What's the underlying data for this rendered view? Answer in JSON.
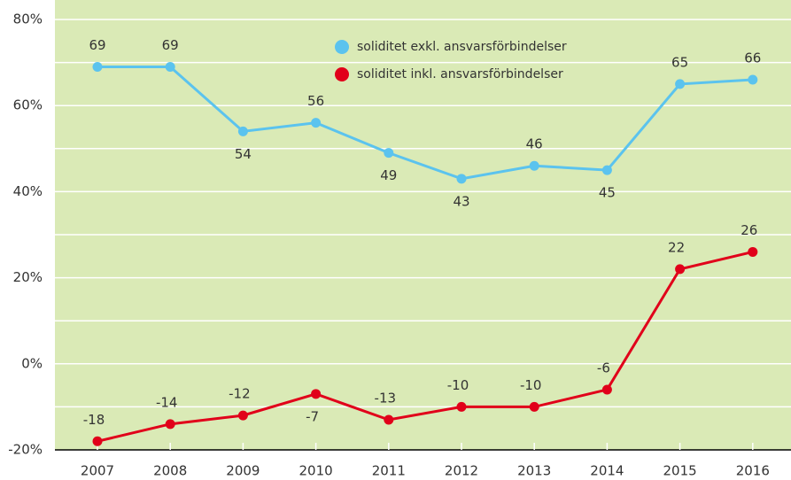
{
  "chart_data": {
    "type": "line",
    "categories": [
      "2007",
      "2008",
      "2009",
      "2010",
      "2011",
      "2012",
      "2013",
      "2014",
      "2015",
      "2016"
    ],
    "series": [
      {
        "name": "soliditet exkl. ansvarsförbindelser",
        "color": "#5bc3ee",
        "values": [
          69,
          69,
          54,
          56,
          49,
          43,
          46,
          45,
          65,
          66
        ]
      },
      {
        "name": "soliditet inkl. ansvarsförbindelser",
        "color": "#e1001a",
        "values": [
          -18,
          -14,
          -12,
          -7,
          -13,
          -10,
          -10,
          -6,
          22,
          26
        ]
      }
    ],
    "ylim": [
      -20,
      80
    ],
    "yticks": [
      {
        "value": -20,
        "label": "-20%"
      },
      {
        "value": 0,
        "label": "0%"
      },
      {
        "value": 20,
        "label": "20%"
      },
      {
        "value": 40,
        "label": "40%"
      },
      {
        "value": 60,
        "label": "60%"
      },
      {
        "value": 80,
        "label": "80%"
      }
    ],
    "minor_yticks": [
      -10,
      10,
      30,
      50,
      70
    ],
    "grid": true
  }
}
